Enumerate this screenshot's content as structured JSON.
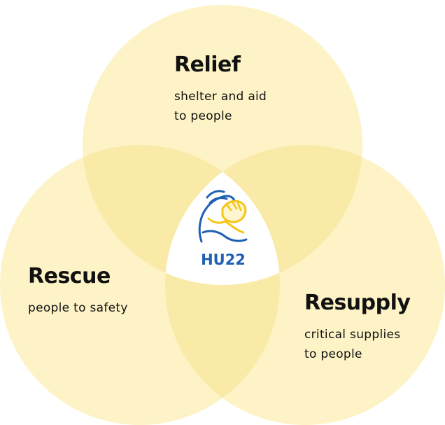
{
  "diagram": {
    "circles": [
      {
        "id": "relief",
        "fill": "#fdf3c6"
      },
      {
        "id": "rescue",
        "fill": "#fdf3c6"
      },
      {
        "id": "resupply",
        "fill": "#fdf3c6"
      }
    ],
    "overlap_color": "#faeaa8",
    "center_color": "#ffffff"
  },
  "relief": {
    "title": "Relief",
    "lines": [
      "shelter and aid",
      "to people"
    ]
  },
  "rescue": {
    "title": "Rescue",
    "lines": [
      "people to safety"
    ]
  },
  "resupply": {
    "title": "Resupply",
    "lines": [
      "critical supplies",
      "to people"
    ]
  },
  "logo": {
    "text": "HU22",
    "text_color": "#1f5fb4",
    "accent_color": "#f5c518",
    "icon": "clasped-hands-icon"
  }
}
